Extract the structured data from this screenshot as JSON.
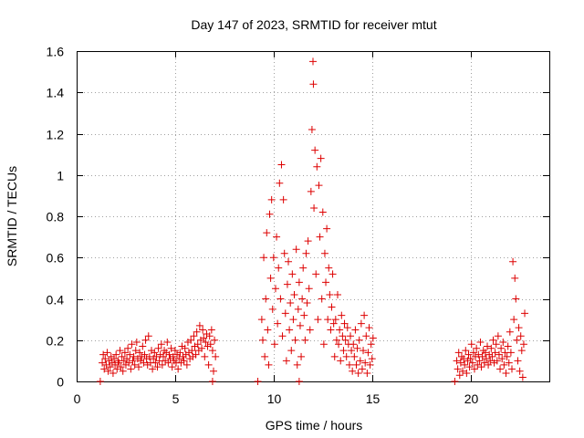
{
  "chart_data": {
    "type": "scatter",
    "title": "Day 147 of 2023, SRMTID for receiver mtut",
    "xlabel": "GPS time / hours",
    "ylabel": "SRMTID / TECUs",
    "xlim": [
      0,
      24
    ],
    "ylim": [
      0,
      1.6
    ],
    "xticks": [
      0,
      5,
      10,
      15,
      20
    ],
    "xtick_labels": [
      "0",
      "5",
      "10",
      "15",
      "20"
    ],
    "yticks": [
      0,
      0.2,
      0.4,
      0.6,
      0.8,
      1.0,
      1.2,
      1.4,
      1.6
    ],
    "ytick_labels": [
      "0",
      "0.2",
      "0.4",
      "0.6",
      "0.8",
      "1",
      "1.2",
      "1.4",
      "1.6"
    ],
    "grid": true,
    "marker": "plus",
    "color": "#dd0000",
    "series": [
      {
        "name": "SRMTID",
        "points": [
          [
            1.3,
            0.09
          ],
          [
            1.35,
            0.13
          ],
          [
            1.4,
            0.06
          ],
          [
            1.45,
            0.11
          ],
          [
            1.5,
            0.08
          ],
          [
            1.55,
            0.14
          ],
          [
            1.6,
            0.05
          ],
          [
            1.65,
            0.1
          ],
          [
            1.7,
            0.07
          ],
          [
            1.75,
            0.12
          ],
          [
            1.8,
            0.09
          ],
          [
            1.85,
            0.04
          ],
          [
            1.9,
            0.11
          ],
          [
            1.95,
            0.08
          ],
          [
            2.0,
            0.13
          ],
          [
            2.05,
            0.06
          ],
          [
            2.1,
            0.1
          ],
          [
            2.15,
            0.09
          ],
          [
            2.2,
            0.15
          ],
          [
            2.25,
            0.07
          ],
          [
            2.3,
            0.12
          ],
          [
            2.35,
            0.05
          ],
          [
            2.4,
            0.1
          ],
          [
            2.45,
            0.14
          ],
          [
            2.5,
            0.08
          ],
          [
            2.55,
            0.11
          ],
          [
            2.6,
            0.16
          ],
          [
            2.65,
            0.09
          ],
          [
            2.7,
            0.13
          ],
          [
            2.75,
            0.06
          ],
          [
            2.8,
            0.18
          ],
          [
            2.85,
            0.1
          ],
          [
            2.9,
            0.12
          ],
          [
            2.95,
            0.08
          ],
          [
            3.0,
            0.15
          ],
          [
            3.05,
            0.19
          ],
          [
            3.1,
            0.11
          ],
          [
            3.15,
            0.07
          ],
          [
            3.2,
            0.14
          ],
          [
            3.25,
            0.1
          ],
          [
            3.3,
            0.12
          ],
          [
            3.35,
            0.17
          ],
          [
            3.4,
            0.09
          ],
          [
            3.45,
            0.13
          ],
          [
            3.5,
            0.2
          ],
          [
            3.55,
            0.11
          ],
          [
            3.6,
            0.08
          ],
          [
            3.65,
            0.22
          ],
          [
            3.7,
            0.12
          ],
          [
            3.75,
            0.09
          ],
          [
            3.8,
            0.15
          ],
          [
            3.85,
            0.06
          ],
          [
            3.9,
            0.11
          ],
          [
            3.95,
            0.14
          ],
          [
            4.0,
            0.09
          ],
          [
            4.05,
            0.12
          ],
          [
            4.1,
            0.07
          ],
          [
            4.15,
            0.16
          ],
          [
            4.2,
            0.1
          ],
          [
            4.25,
            0.13
          ],
          [
            4.3,
            0.18
          ],
          [
            4.35,
            0.08
          ],
          [
            4.4,
            0.12
          ],
          [
            4.45,
            0.15
          ],
          [
            4.5,
            0.1
          ],
          [
            4.55,
            0.14
          ],
          [
            4.6,
            0.19
          ],
          [
            4.65,
            0.09
          ],
          [
            4.7,
            0.13
          ],
          [
            4.75,
            0.11
          ],
          [
            4.8,
            0.16
          ],
          [
            4.85,
            0.07
          ],
          [
            4.9,
            0.12
          ],
          [
            4.95,
            0.1
          ],
          [
            5.0,
            0.15
          ],
          [
            5.05,
            0.09
          ],
          [
            5.1,
            0.13
          ],
          [
            5.15,
            0.06
          ],
          [
            5.2,
            0.11
          ],
          [
            5.25,
            0.14
          ],
          [
            5.3,
            0.09
          ],
          [
            5.35,
            0.17
          ],
          [
            5.4,
            0.12
          ],
          [
            5.45,
            0.1
          ],
          [
            5.5,
            0.16
          ],
          [
            5.55,
            0.13
          ],
          [
            5.6,
            0.08
          ],
          [
            5.65,
            0.19
          ],
          [
            5.7,
            0.14
          ],
          [
            5.75,
            0.11
          ],
          [
            5.8,
            0.2
          ],
          [
            5.85,
            0.15
          ],
          [
            5.9,
            0.12
          ],
          [
            5.95,
            0.22
          ],
          [
            6.0,
            0.17
          ],
          [
            6.05,
            0.13
          ],
          [
            6.1,
            0.24
          ],
          [
            6.15,
            0.18
          ],
          [
            6.2,
            0.15
          ],
          [
            6.25,
            0.27
          ],
          [
            6.3,
            0.2
          ],
          [
            6.35,
            0.16
          ],
          [
            6.4,
            0.25
          ],
          [
            6.45,
            0.21
          ],
          [
            6.5,
            0.12
          ],
          [
            6.55,
            0.19
          ],
          [
            6.6,
            0.23
          ],
          [
            6.65,
            0.17
          ],
          [
            6.7,
            0.08
          ],
          [
            6.75,
            0.22
          ],
          [
            6.8,
            0.18
          ],
          [
            6.85,
            0.25
          ],
          [
            6.9,
            0.15
          ],
          [
            6.95,
            0.05
          ],
          [
            7.0,
            0.2
          ],
          [
            7.05,
            0.12
          ],
          [
            1.2,
            0.0
          ],
          [
            6.9,
            0.0
          ],
          [
            9.2,
            0.0
          ],
          [
            11.3,
            0.0
          ],
          [
            19.2,
            0.0
          ],
          [
            9.4,
            0.3
          ],
          [
            9.45,
            0.2
          ],
          [
            9.5,
            0.6
          ],
          [
            9.55,
            0.12
          ],
          [
            9.6,
            0.4
          ],
          [
            9.65,
            0.72
          ],
          [
            9.7,
            0.25
          ],
          [
            9.75,
            0.08
          ],
          [
            9.8,
            0.81
          ],
          [
            9.85,
            0.5
          ],
          [
            9.9,
            0.88
          ],
          [
            9.95,
            0.35
          ],
          [
            10.0,
            0.6
          ],
          [
            10.05,
            0.18
          ],
          [
            10.1,
            0.45
          ],
          [
            10.15,
            0.7
          ],
          [
            10.2,
            0.28
          ],
          [
            10.25,
            0.55
          ],
          [
            10.3,
            0.96
          ],
          [
            10.35,
            0.4
          ],
          [
            10.4,
            1.05
          ],
          [
            10.45,
            0.22
          ],
          [
            10.5,
            0.88
          ],
          [
            10.55,
            0.62
          ],
          [
            10.6,
            0.33
          ],
          [
            10.65,
            0.1
          ],
          [
            10.7,
            0.47
          ],
          [
            10.75,
            0.58
          ],
          [
            10.8,
            0.25
          ],
          [
            10.85,
            0.38
          ],
          [
            10.9,
            0.15
          ],
          [
            10.95,
            0.52
          ],
          [
            11.0,
            0.3
          ],
          [
            11.05,
            0.42
          ],
          [
            11.1,
            0.2
          ],
          [
            11.15,
            0.64
          ],
          [
            11.2,
            0.08
          ],
          [
            11.25,
            0.35
          ],
          [
            11.3,
            0.48
          ],
          [
            11.35,
            0.27
          ],
          [
            11.4,
            0.12
          ],
          [
            11.45,
            0.4
          ],
          [
            11.5,
            0.55
          ],
          [
            11.55,
            0.32
          ],
          [
            11.6,
            0.2
          ],
          [
            11.65,
            0.62
          ],
          [
            11.7,
            0.38
          ],
          [
            11.75,
            0.68
          ],
          [
            11.8,
            0.45
          ],
          [
            11.85,
            0.25
          ],
          [
            11.9,
            0.92
          ],
          [
            11.95,
            1.22
          ],
          [
            12.0,
            1.55
          ],
          [
            12.02,
            1.44
          ],
          [
            12.05,
            0.84
          ],
          [
            12.1,
            1.12
          ],
          [
            12.15,
            0.52
          ],
          [
            12.2,
            1.04
          ],
          [
            12.25,
            0.3
          ],
          [
            12.3,
            0.95
          ],
          [
            12.35,
            0.7
          ],
          [
            12.4,
            1.08
          ],
          [
            12.45,
            0.4
          ],
          [
            12.5,
            0.82
          ],
          [
            12.55,
            0.18
          ],
          [
            12.6,
            0.62
          ],
          [
            12.65,
            0.48
          ],
          [
            12.7,
            0.74
          ],
          [
            12.75,
            0.3
          ],
          [
            12.8,
            0.55
          ],
          [
            12.85,
            0.42
          ],
          [
            12.9,
            0.25
          ],
          [
            12.95,
            0.36
          ],
          [
            13.0,
            0.52
          ],
          [
            13.05,
            0.28
          ],
          [
            13.1,
            0.12
          ],
          [
            13.15,
            0.3
          ],
          [
            13.2,
            0.2
          ],
          [
            13.25,
            0.42
          ],
          [
            13.3,
            0.18
          ],
          [
            13.35,
            0.25
          ],
          [
            13.4,
            0.1
          ],
          [
            13.45,
            0.32
          ],
          [
            13.5,
            0.22
          ],
          [
            13.55,
            0.15
          ],
          [
            13.6,
            0.28
          ],
          [
            13.65,
            0.2
          ],
          [
            13.7,
            0.12
          ],
          [
            13.75,
            0.26
          ],
          [
            13.8,
            0.18
          ],
          [
            13.85,
            0.08
          ],
          [
            13.9,
            0.22
          ],
          [
            13.95,
            0.15
          ],
          [
            14.0,
            0.05
          ],
          [
            14.05,
            0.18
          ],
          [
            14.1,
            0.12
          ],
          [
            14.15,
            0.25
          ],
          [
            14.2,
            0.08
          ],
          [
            14.25,
            0.16
          ],
          [
            14.3,
            0.04
          ],
          [
            14.35,
            0.2
          ],
          [
            14.4,
            0.1
          ],
          [
            14.45,
            0.28
          ],
          [
            14.5,
            0.06
          ],
          [
            14.55,
            0.15
          ],
          [
            14.6,
            0.32
          ],
          [
            14.65,
            0.09
          ],
          [
            14.7,
            0.22
          ],
          [
            14.75,
            0.04
          ],
          [
            14.8,
            0.14
          ],
          [
            14.85,
            0.26
          ],
          [
            14.9,
            0.08
          ],
          [
            14.95,
            0.18
          ],
          [
            15.0,
            0.11
          ],
          [
            15.05,
            0.21
          ],
          [
            19.3,
            0.1
          ],
          [
            19.35,
            0.06
          ],
          [
            19.4,
            0.14
          ],
          [
            19.45,
            0.03
          ],
          [
            19.5,
            0.09
          ],
          [
            19.55,
            0.12
          ],
          [
            19.6,
            0.05
          ],
          [
            19.65,
            0.11
          ],
          [
            19.7,
            0.08
          ],
          [
            19.75,
            0.15
          ],
          [
            19.8,
            0.04
          ],
          [
            19.85,
            0.1
          ],
          [
            19.9,
            0.13
          ],
          [
            19.95,
            0.07
          ],
          [
            20.0,
            0.11
          ],
          [
            20.05,
            0.18
          ],
          [
            20.1,
            0.09
          ],
          [
            20.15,
            0.14
          ],
          [
            20.2,
            0.06
          ],
          [
            20.25,
            0.12
          ],
          [
            20.3,
            0.16
          ],
          [
            20.35,
            0.08
          ],
          [
            20.4,
            0.13
          ],
          [
            20.45,
            0.1
          ],
          [
            20.5,
            0.19
          ],
          [
            20.55,
            0.07
          ],
          [
            20.6,
            0.12
          ],
          [
            20.65,
            0.15
          ],
          [
            20.7,
            0.09
          ],
          [
            20.75,
            0.14
          ],
          [
            20.8,
            0.11
          ],
          [
            20.85,
            0.17
          ],
          [
            20.9,
            0.08
          ],
          [
            20.95,
            0.13
          ],
          [
            21.0,
            0.1
          ],
          [
            21.05,
            0.16
          ],
          [
            21.1,
            0.12
          ],
          [
            21.15,
            0.2
          ],
          [
            21.2,
            0.09
          ],
          [
            21.25,
            0.14
          ],
          [
            21.3,
            0.18
          ],
          [
            21.35,
            0.1
          ],
          [
            21.4,
            0.22
          ],
          [
            21.45,
            0.13
          ],
          [
            21.5,
            0.06
          ],
          [
            21.55,
            0.16
          ],
          [
            21.6,
            0.11
          ],
          [
            21.65,
            0.19
          ],
          [
            21.7,
            0.08
          ],
          [
            21.75,
            0.14
          ],
          [
            21.8,
            0.04
          ],
          [
            21.85,
            0.12
          ],
          [
            21.9,
            0.17
          ],
          [
            21.95,
            0.09
          ],
          [
            22.0,
            0.24
          ],
          [
            22.05,
            0.14
          ],
          [
            22.1,
            0.06
          ],
          [
            22.15,
            0.58
          ],
          [
            22.2,
            0.3
          ],
          [
            22.25,
            0.5
          ],
          [
            22.3,
            0.4
          ],
          [
            22.35,
            0.2
          ],
          [
            22.4,
            0.1
          ],
          [
            22.45,
            0.26
          ],
          [
            22.5,
            0.05
          ],
          [
            22.55,
            0.22
          ],
          [
            22.6,
            0.15
          ],
          [
            22.65,
            0.02
          ],
          [
            22.7,
            0.18
          ],
          [
            22.75,
            0.33
          ]
        ]
      }
    ]
  }
}
